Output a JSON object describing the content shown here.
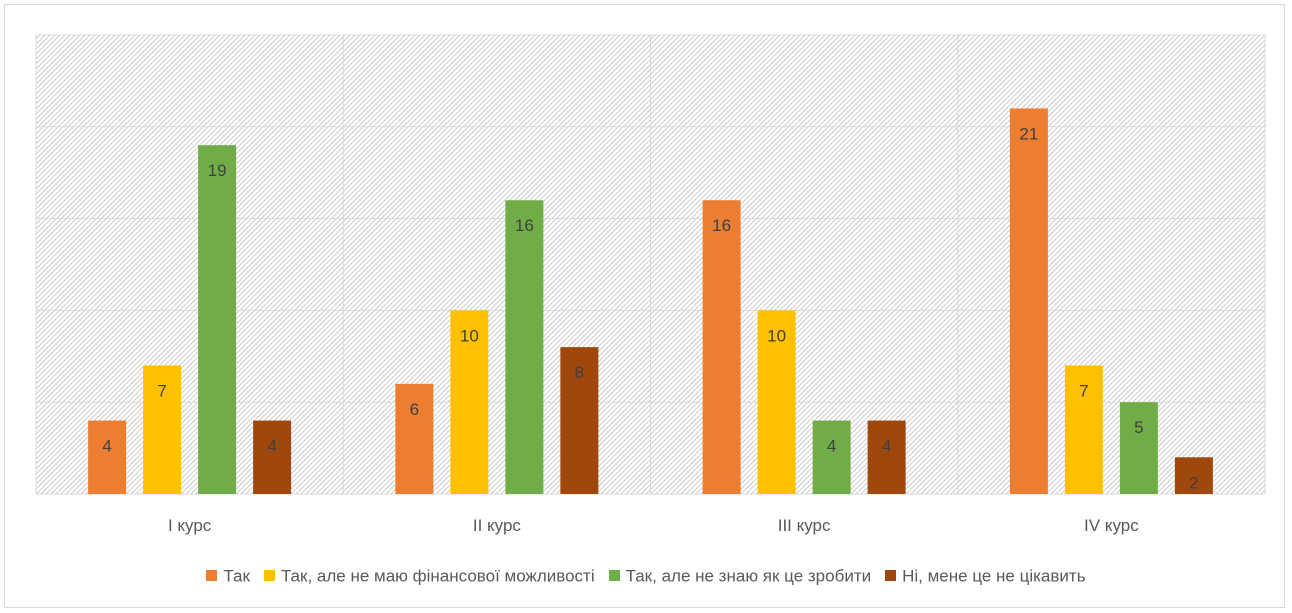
{
  "chart_data": {
    "type": "bar",
    "categories": [
      "I курс",
      "II курс",
      "III курс",
      "IV курс"
    ],
    "series": [
      {
        "name": "Так",
        "color": "#ED7D31",
        "values": [
          4,
          6,
          16,
          21
        ]
      },
      {
        "name": "Так, але не маю фінансової можливості",
        "color": "#FFC000",
        "values": [
          7,
          10,
          10,
          7
        ]
      },
      {
        "name": "Так, але не знаю як це зробити",
        "color": "#70AD47",
        "values": [
          19,
          16,
          4,
          5
        ]
      },
      {
        "name": "Ні, мене це не цікавить",
        "color": "#9E480E",
        "values": [
          4,
          8,
          4,
          2
        ]
      }
    ],
    "ylim": [
      0,
      25
    ],
    "grid": true,
    "legend": "bottom",
    "title": "",
    "xlabel": "",
    "ylabel": ""
  }
}
